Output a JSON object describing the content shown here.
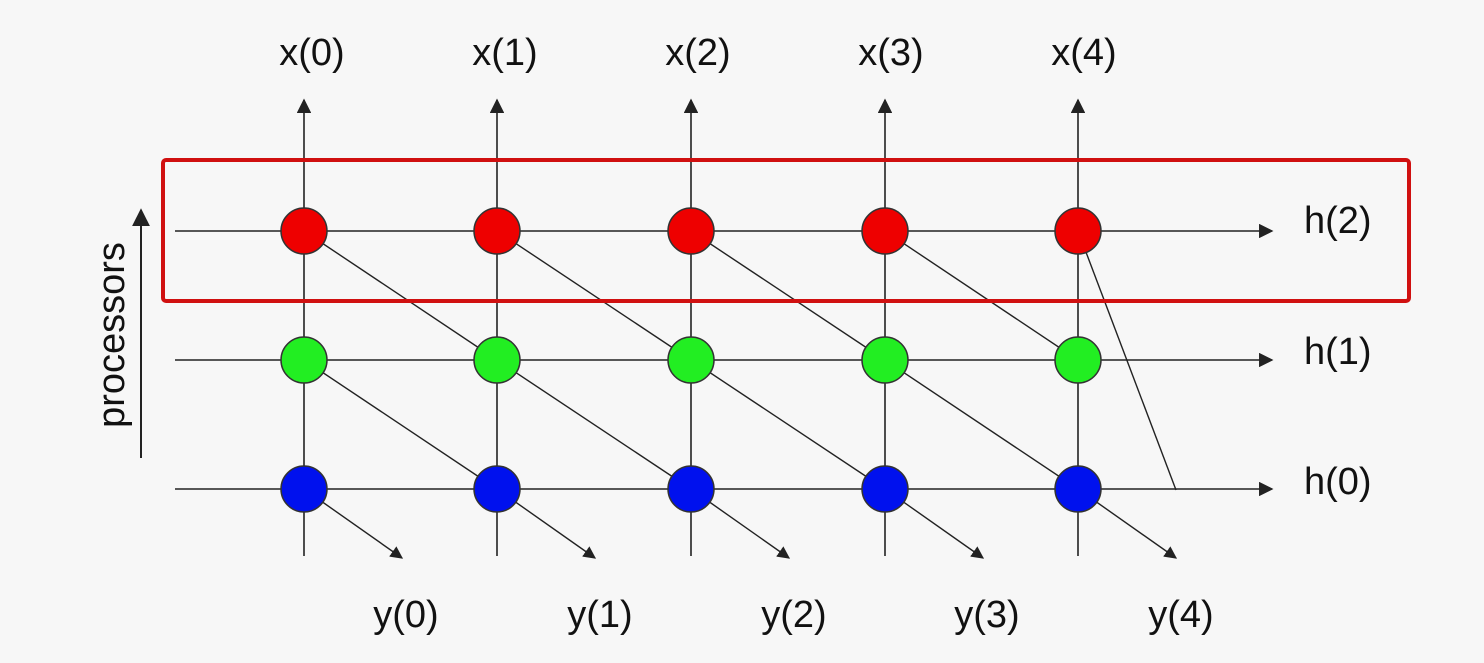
{
  "diagram": {
    "top_labels": [
      "x(0)",
      "x(1)",
      "x(2)",
      "x(3)",
      "x(4)"
    ],
    "bottom_labels": [
      "y(0)",
      "y(1)",
      "y(2)",
      "y(3)",
      "y(4)"
    ],
    "row_labels": [
      "h(2)",
      "h(1)",
      "h(0)"
    ],
    "side_label": "processors",
    "colors": {
      "top_row": "#ee0000",
      "middle_row": "#22ee22",
      "bottom_row": "#0011ee",
      "highlight_box": "#d01010",
      "lines": "#222222"
    },
    "highlighted_row": "h(2)"
  }
}
